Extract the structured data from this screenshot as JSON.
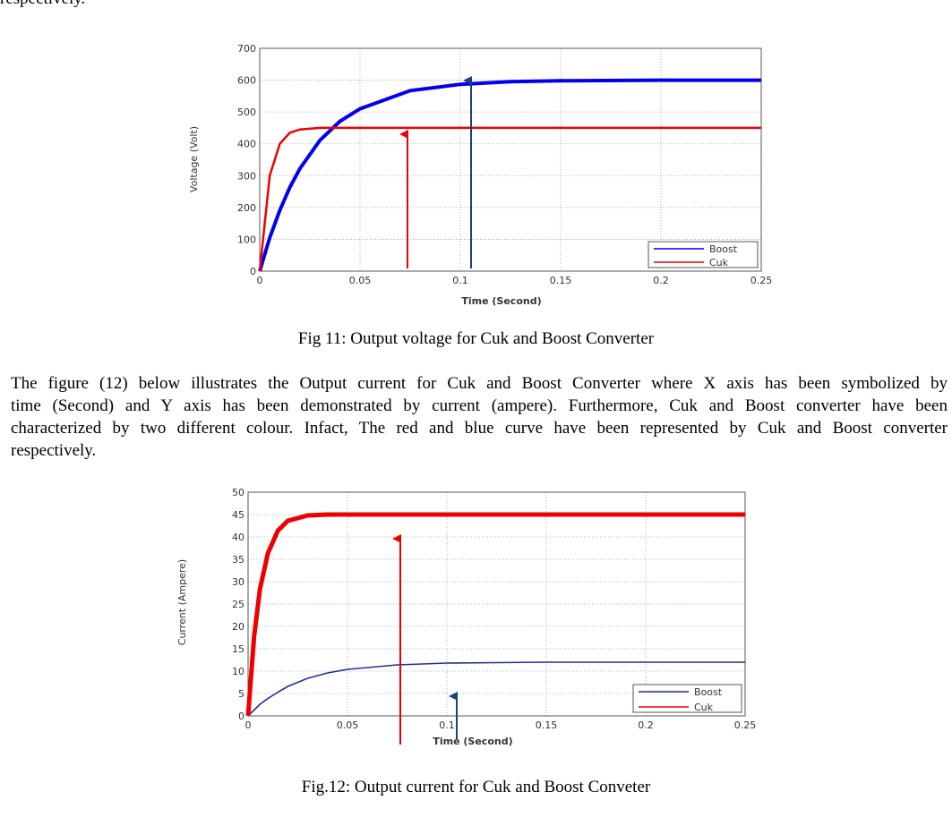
{
  "top_text": "respectively.",
  "captions": [
    "Fig 11: Output voltage for Cuk and Boost Converter",
    "Fig.12: Output current  for Cuk and Boost Conveter"
  ],
  "paragraph": [
    "The figure (12) below illustrates the Output current  for Cuk and Boost Converter where X axis has been symbolized by",
    "time (Second) and Y axis has been demonstrated by current (ampere). Furthermore, Cuk and Boost converter have been",
    "characterized by two different colour. Infact, The red and blue curve have been represented by Cuk and Boost converter",
    "respectively."
  ],
  "chart_data": [
    {
      "type": "line",
      "x_label": "Time (Second)",
      "y_label": "Voltage (Volt)",
      "x": [
        0,
        0.005,
        0.01,
        0.015,
        0.02,
        0.03,
        0.04,
        0.05,
        0.075,
        0.1,
        0.125,
        0.15,
        0.2,
        0.25
      ],
      "series": [
        {
          "name": "Boost",
          "color": "#0000ee",
          "values": [
            0,
            105,
            191,
            263,
            322,
            411,
            471,
            510,
            567,
            587,
            595,
            598,
            600,
            600
          ]
        },
        {
          "name": "Cuk",
          "color": "#ee0000",
          "values": [
            0,
            300,
            400,
            435,
            445,
            450,
            450,
            450,
            450,
            450,
            450,
            450,
            450,
            450
          ]
        }
      ],
      "xlim": [
        0,
        0.25
      ],
      "xticks": [
        0,
        0.05,
        0.1,
        0.15,
        0.2,
        0.25
      ],
      "ylim": [
        0,
        700
      ],
      "yticks": [
        0,
        100,
        200,
        300,
        400,
        500,
        600,
        700
      ],
      "grid": true,
      "legend": "lower-right"
    },
    {
      "type": "line",
      "x_label": "Time (Second)",
      "y_label": "Current (Ampere)",
      "x": [
        0,
        0.003,
        0.006,
        0.01,
        0.015,
        0.02,
        0.03,
        0.04,
        0.05,
        0.075,
        0.1,
        0.125,
        0.15,
        0.2,
        0.25
      ],
      "series": [
        {
          "name": "Boost",
          "color": "#1c2f9a",
          "values": [
            0,
            1.3,
            2.6,
            3.9,
            5.3,
            6.6,
            8.4,
            9.6,
            10.4,
            11.4,
            11.8,
            11.9,
            12,
            12,
            12
          ]
        },
        {
          "name": "Cuk",
          "color": "#ee0000",
          "values": [
            0,
            17.7,
            28.4,
            36.4,
            41.4,
            43.6,
            44.8,
            45,
            45,
            45,
            45,
            45,
            45,
            45,
            45
          ]
        }
      ],
      "xlim": [
        0,
        0.25
      ],
      "xticks": [
        0,
        0.05,
        0.1,
        0.15,
        0.2,
        0.25
      ],
      "ylim": [
        0,
        50
      ],
      "yticks": [
        0,
        5,
        10,
        15,
        20,
        25,
        30,
        35,
        40,
        45,
        50
      ],
      "grid": true,
      "legend": "lower-right"
    }
  ]
}
